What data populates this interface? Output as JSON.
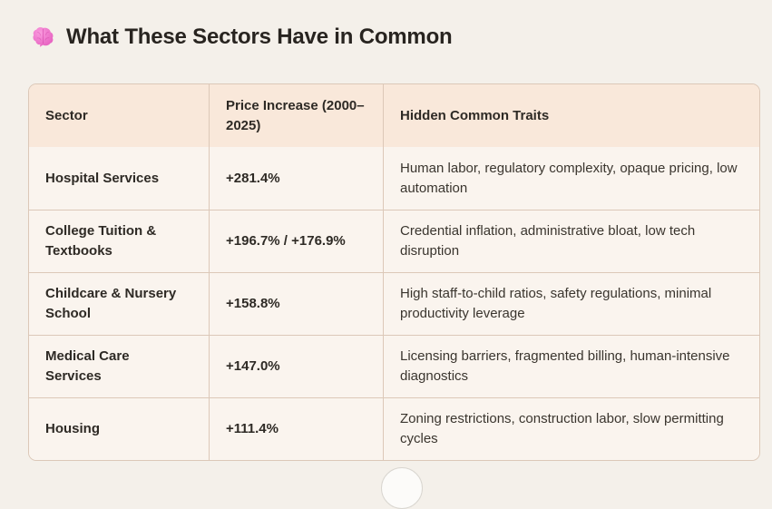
{
  "page": {
    "title": "What These Sectors Have in Common",
    "title_icon": "brain-emoji"
  },
  "table": {
    "columns": [
      "Sector",
      "Price Increase (2000–2025)",
      "Hidden Common Traits"
    ],
    "rows": [
      {
        "sector": "Hospital Services",
        "price": "+281.4%",
        "traits": "Human labor, regulatory complexity, opaque pricing, low automation"
      },
      {
        "sector": "College Tuition & Textbooks",
        "price": "+196.7% / +176.9%",
        "traits": "Credential inflation, administrative bloat, low tech disruption"
      },
      {
        "sector": "Childcare & Nursery School",
        "price": "+158.8%",
        "traits": "High staff-to-child ratios, safety regulations, minimal productivity leverage"
      },
      {
        "sector": "Medical Care Services",
        "price": "+147.0%",
        "traits": "Licensing barriers, fragmented billing, human-intensive diagnostics"
      },
      {
        "sector": "Housing",
        "price": "+111.4%",
        "traits": "Zoning restrictions, construction labor, slow permitting cycles"
      }
    ]
  },
  "colors": {
    "page_bg": "#f4f0ea",
    "header_bg": "#f9e8da",
    "row_bg": "#faf4ee",
    "border": "#dcc8b8",
    "text_strong": "#2e2a25",
    "text_body": "#3a352e",
    "emoji_pink": "#ee60c0"
  }
}
